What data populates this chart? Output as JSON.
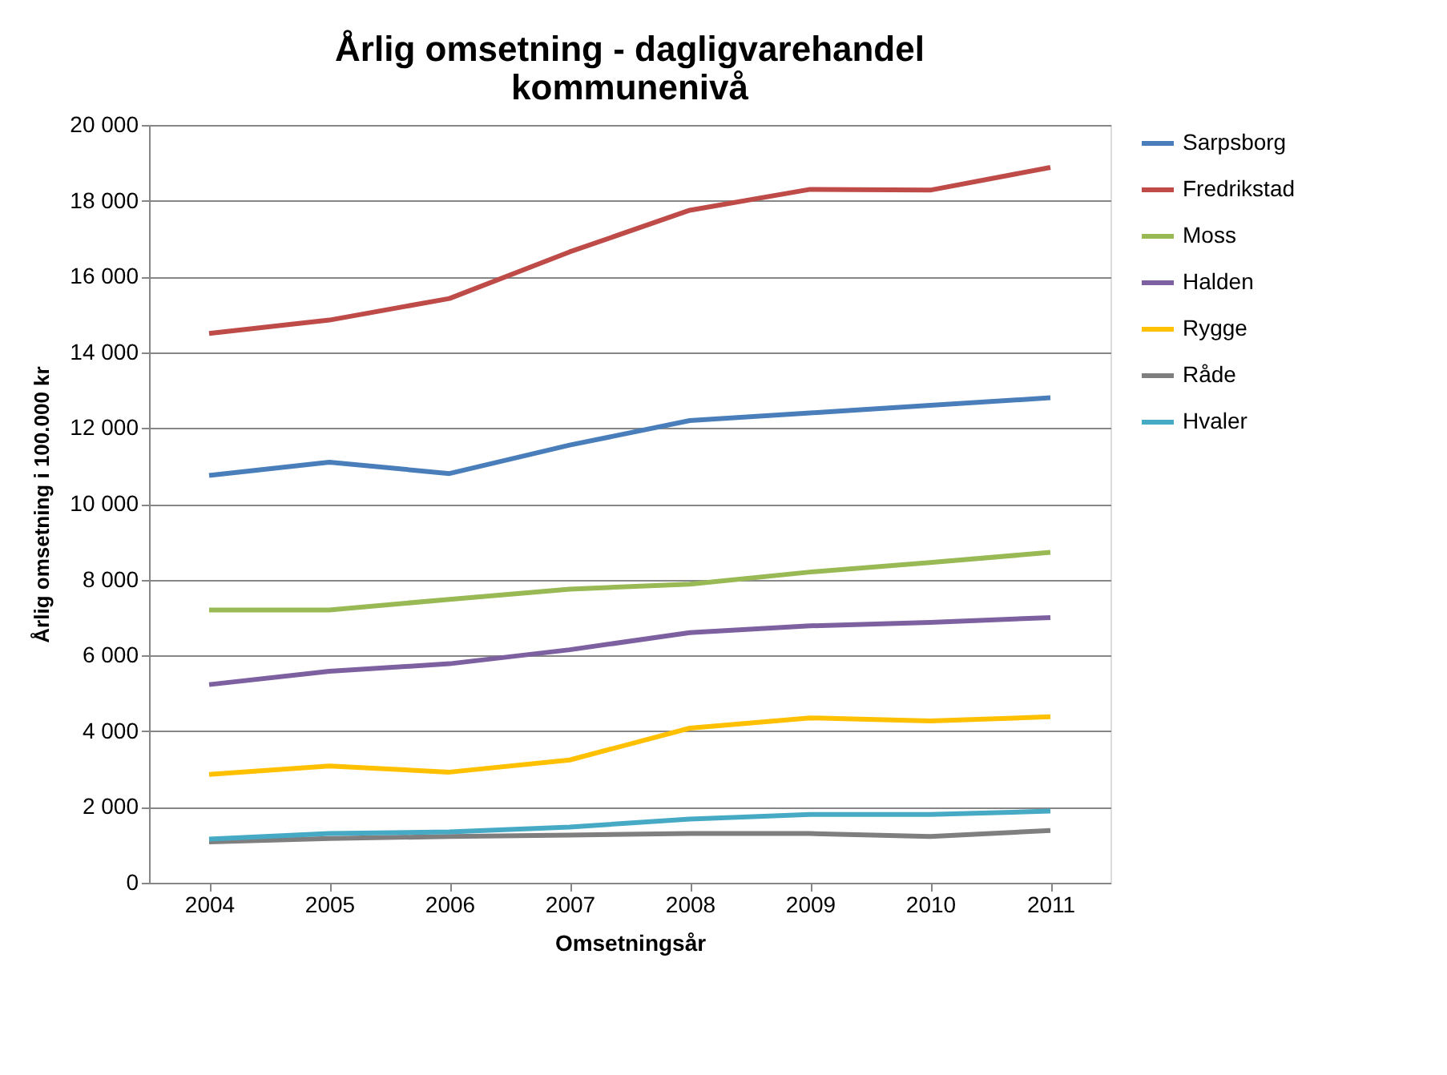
{
  "chart_data": {
    "type": "line",
    "title": "Årlig omsetning - dagligvarehandel\nkommunenivå",
    "xlabel": "Omsetningsår",
    "ylabel": "Årlig omsetning i 100.000 kr",
    "categories": [
      "2004",
      "2005",
      "2006",
      "2007",
      "2008",
      "2009",
      "2010",
      "2011"
    ],
    "series": [
      {
        "name": "Sarpsborg",
        "color": "#4a7ebb",
        "values": [
          10750,
          11100,
          10800,
          11550,
          12200,
          12400,
          12600,
          12800
        ]
      },
      {
        "name": "Fredrikstad",
        "color": "#be4b48",
        "values": [
          14500,
          14850,
          15420,
          16650,
          17750,
          18300,
          18280,
          18880
        ]
      },
      {
        "name": "Moss",
        "color": "#98b954",
        "values": [
          7200,
          7200,
          7480,
          7750,
          7880,
          8200,
          8450,
          8720
        ]
      },
      {
        "name": "Halden",
        "color": "#7d60a0",
        "values": [
          5230,
          5580,
          5780,
          6150,
          6600,
          6780,
          6870,
          7000
        ]
      },
      {
        "name": "Rygge",
        "color": "#ffc000",
        "values": [
          2860,
          3080,
          2920,
          3240,
          4080,
          4350,
          4270,
          4380
        ]
      },
      {
        "name": "Råde",
        "color": "#7f7f7f",
        "values": [
          1080,
          1170,
          1220,
          1260,
          1300,
          1300,
          1220,
          1380
        ]
      },
      {
        "name": "Hvaler",
        "color": "#46aac5",
        "values": [
          1150,
          1300,
          1340,
          1470,
          1680,
          1800,
          1800,
          1890
        ]
      }
    ],
    "ylim": [
      0,
      20000
    ],
    "yticks": [
      {
        "value": 0,
        "label": "0"
      },
      {
        "value": 2000,
        "label": "2 000"
      },
      {
        "value": 4000,
        "label": "4 000"
      },
      {
        "value": 6000,
        "label": "6 000"
      },
      {
        "value": 8000,
        "label": "8 000"
      },
      {
        "value": 10000,
        "label": "10 000"
      },
      {
        "value": 12000,
        "label": "12 000"
      },
      {
        "value": 14000,
        "label": "14 000"
      },
      {
        "value": 16000,
        "label": "16 000"
      },
      {
        "value": 18000,
        "label": "18 000"
      },
      {
        "value": 20000,
        "label": "20 000"
      }
    ],
    "grid": "y",
    "legend": "right",
    "marker": "none",
    "line_style": "solid"
  }
}
